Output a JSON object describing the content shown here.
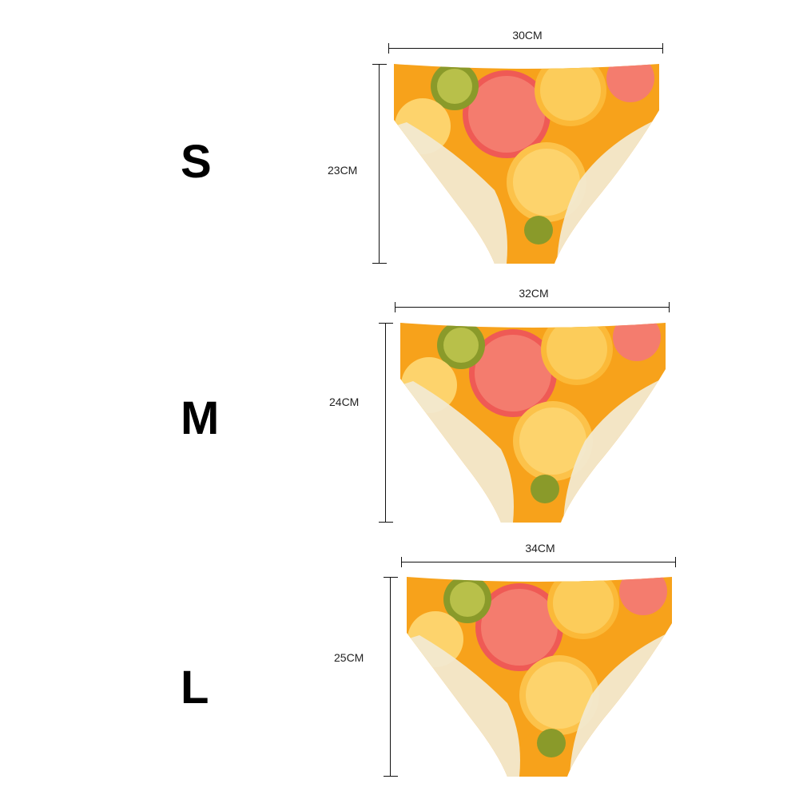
{
  "sizes": [
    {
      "label": "S",
      "width_label": "30CM",
      "height_label": "23CM"
    },
    {
      "label": "M",
      "width_label": "32CM",
      "height_label": "24CM"
    },
    {
      "label": "L",
      "width_label": "34CM",
      "height_label": "25CM"
    }
  ],
  "colors": {
    "orange": "#f7a21b",
    "grapefruit": "#ef5a55",
    "kiwi": "#8a9a2a",
    "lemon_lining": "#f2ead2",
    "background": "#ffffff"
  },
  "garment_icon": "fruit-print-brief-icon"
}
